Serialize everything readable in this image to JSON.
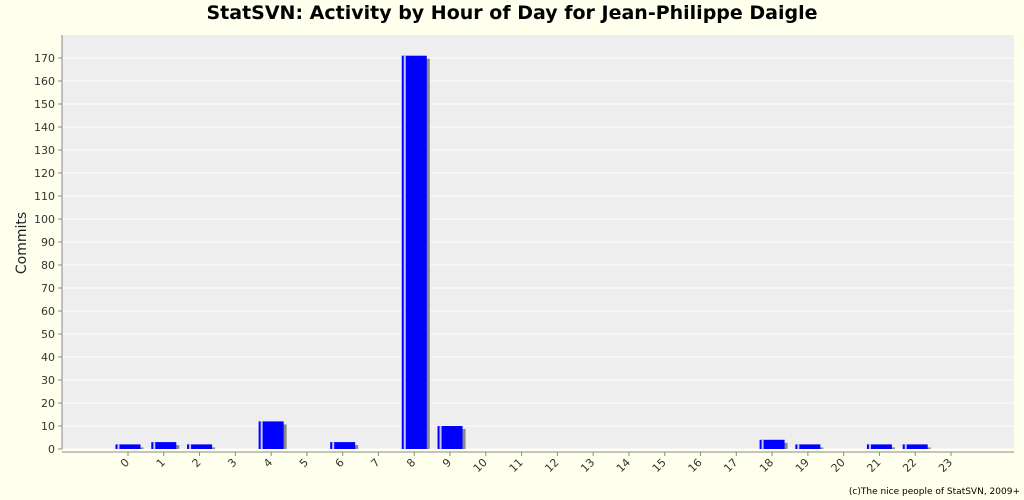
{
  "chart_data": {
    "type": "bar",
    "title": "StatSVN: Activity by Hour of Day for Jean-Philippe Daigle",
    "xlabel": "",
    "ylabel": "Commits",
    "categories": [
      "0",
      "1",
      "2",
      "3",
      "4",
      "5",
      "6",
      "7",
      "8",
      "9",
      "10",
      "11",
      "12",
      "13",
      "14",
      "15",
      "16",
      "17",
      "18",
      "19",
      "20",
      "21",
      "22",
      "23"
    ],
    "values": [
      2,
      3,
      2,
      0,
      12,
      0,
      3,
      0,
      171,
      10,
      0,
      0,
      0,
      0,
      0,
      0,
      0,
      0,
      4,
      2,
      0,
      2,
      2,
      0
    ],
    "ylim": [
      0,
      180
    ],
    "yticks": [
      0,
      10,
      20,
      30,
      40,
      50,
      60,
      70,
      80,
      90,
      100,
      110,
      120,
      130,
      140,
      150,
      160,
      170
    ],
    "grid": true,
    "colors": {
      "bar": "#0000ff",
      "shadow": "#888888",
      "plot_bg": "#eeeeee",
      "page_bg": "#ffffee"
    }
  },
  "footer": {
    "credit": "(c)The nice people of StatSVN, 2009+"
  }
}
